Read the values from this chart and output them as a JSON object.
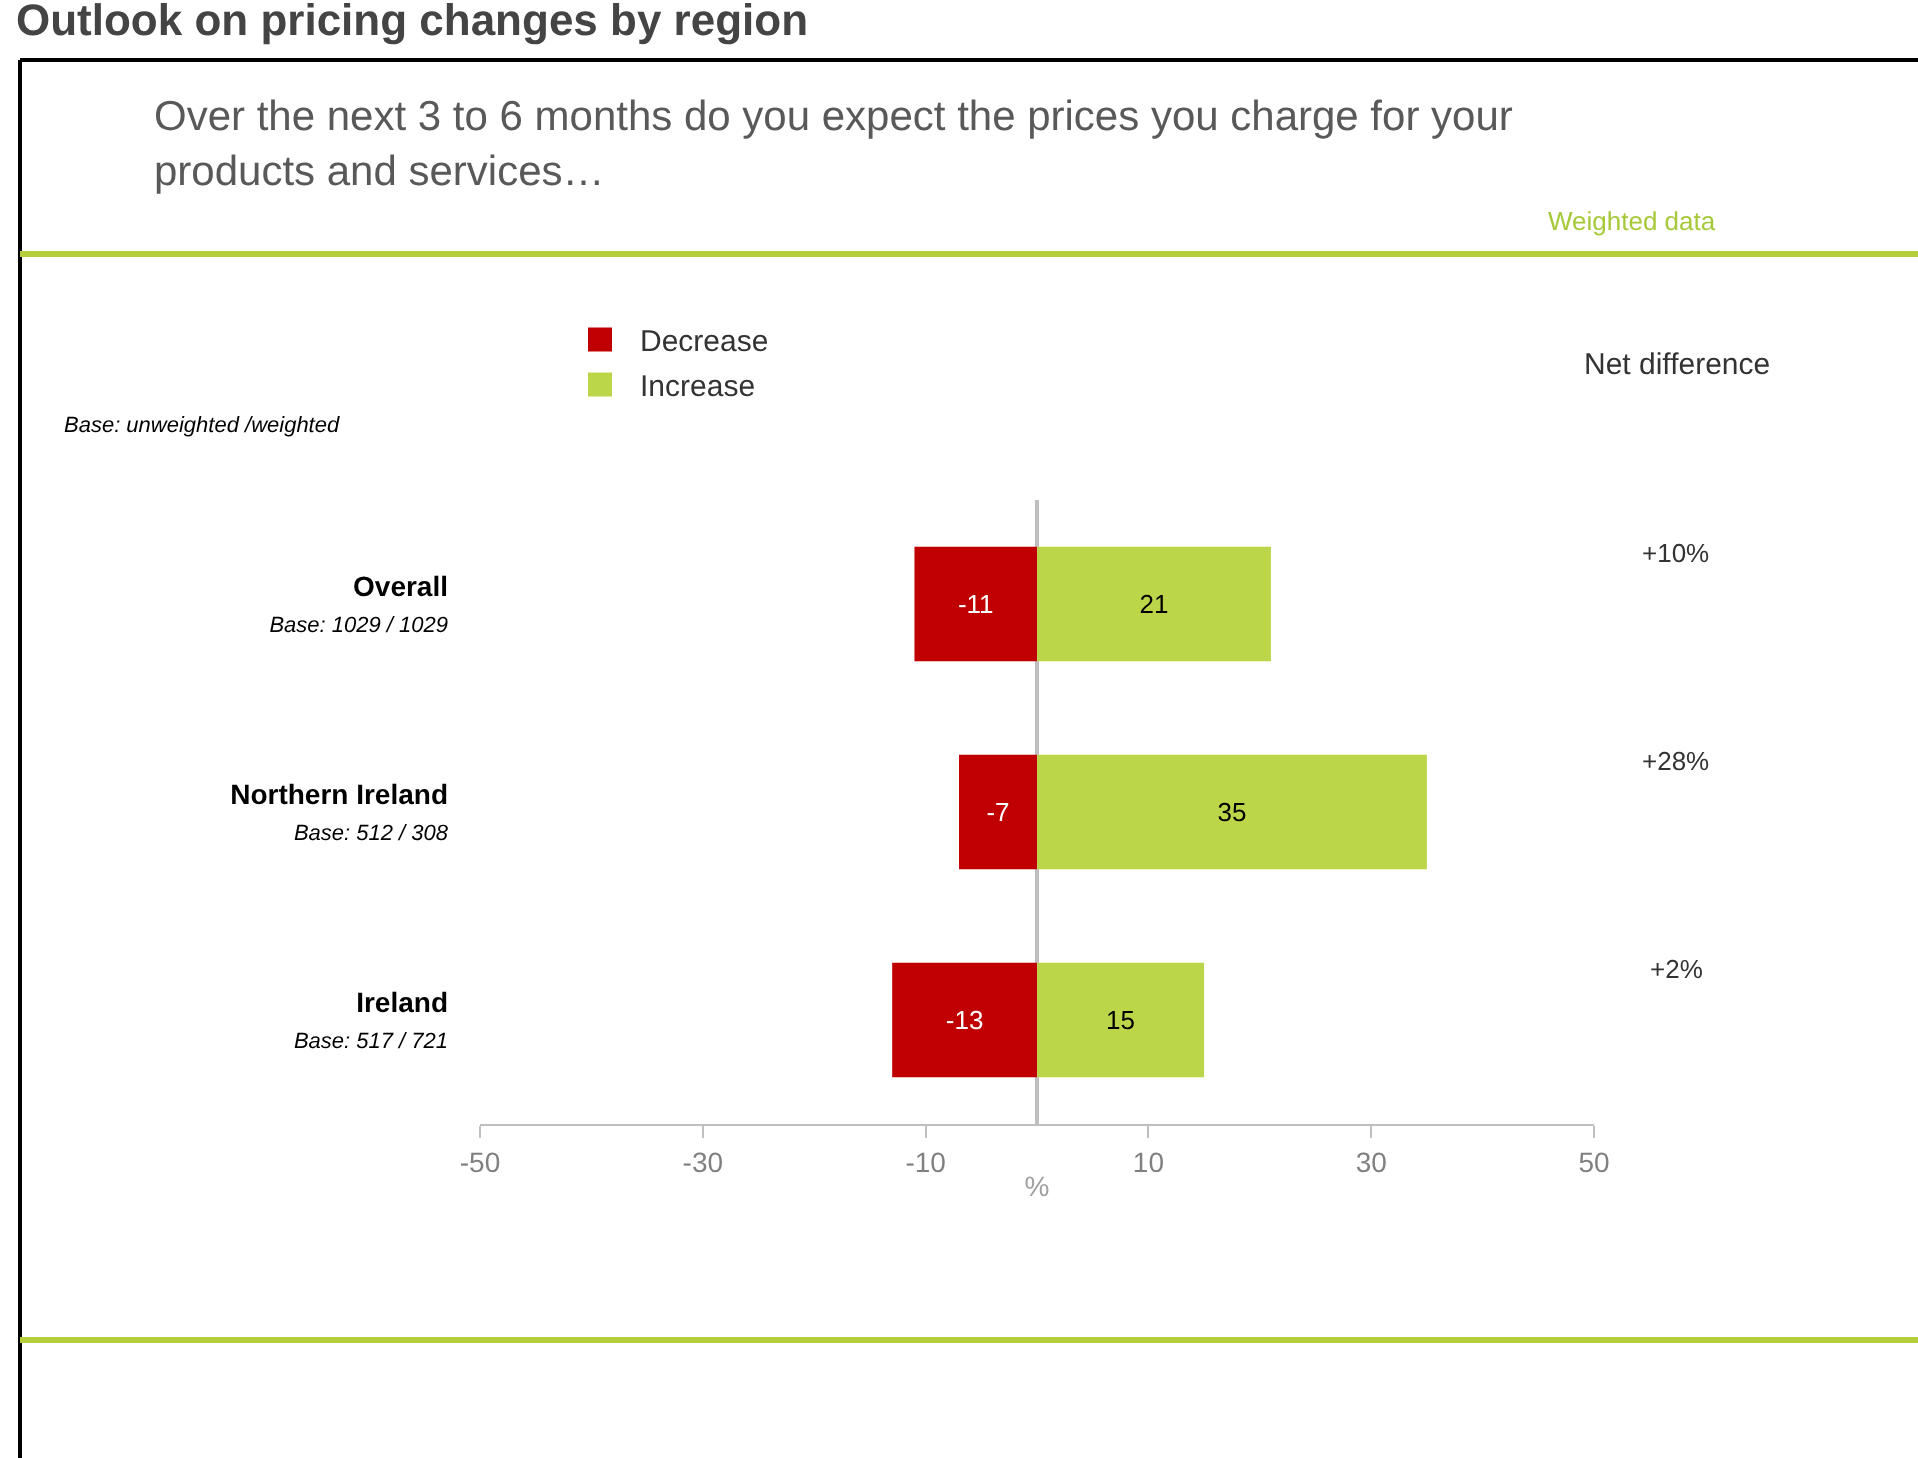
{
  "chart_data": {
    "type": "bar",
    "orientation": "horizontal",
    "stacked": true,
    "title": "Outlook on pricing changes by region",
    "subtitle": "Over the next 3 to 6 months do you expect the prices you charge for your\nproducts and services…",
    "xlabel": "%",
    "categories": [
      "Overall\nBase: 1029 / 1029",
      "Northern Ireland\nBase: 512 / 308",
      "Ireland\nBase: 517 / 721"
    ],
    "series": [
      {
        "name": "Decrease",
        "color": "#c00000",
        "values": [
          -11,
          -7,
          -13
        ]
      },
      {
        "name": "Increase",
        "color": "#bcd64a",
        "values": [
          21,
          35,
          15
        ]
      }
    ],
    "data_labels": true,
    "xlim": [
      -50,
      50
    ],
    "xticks": [
      -50,
      -30,
      -10,
      10,
      30,
      50
    ],
    "grid": false,
    "legend": "top",
    "annotations": [
      "Weighted data",
      "Base: unweighted /weighted",
      "Net difference",
      "+10%",
      "+28%",
      "+2%"
    ]
  }
}
